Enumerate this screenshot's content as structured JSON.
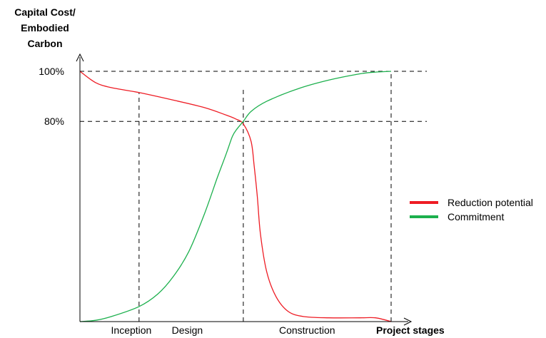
{
  "chart_data": {
    "type": "line",
    "ylabel_lines": [
      "Capital Cost/",
      "Embodied",
      "Carbon"
    ],
    "xlabel": "Project stages",
    "y_ticks": [
      "100%",
      "80%"
    ],
    "y_tick_values": [
      100,
      80
    ],
    "ylim": [
      0,
      100
    ],
    "xlim": [
      0,
      100
    ],
    "stages": [
      "Inception",
      "Design",
      "Construction"
    ],
    "stage_centers": [
      16.5,
      34.5,
      73
    ],
    "stage_boundaries": [
      19,
      52.5,
      100
    ],
    "legend_placement": "right",
    "series": [
      {
        "name": "Reduction potential",
        "color": "#ee1c24",
        "x": [
          0,
          5,
          10,
          19,
          30,
          40,
          47,
          50,
          52.5,
          55,
          56,
          57,
          58,
          60,
          63,
          67,
          72,
          80,
          90,
          95,
          100
        ],
        "y": [
          100,
          95.5,
          93.5,
          91.5,
          88.5,
          85.5,
          82.5,
          81,
          79,
          72,
          62,
          50,
          35,
          20,
          10,
          4,
          2,
          1.5,
          1.5,
          1.5,
          0
        ]
      },
      {
        "name": "Commitment",
        "color": "#1cb04d",
        "x": [
          0,
          5,
          10,
          19,
          25,
          30,
          35,
          40,
          44,
          47,
          49,
          50.5,
          52.5,
          55,
          60,
          70,
          80,
          90,
          95,
          100
        ],
        "y": [
          0,
          0.5,
          2,
          6,
          11,
          18,
          28,
          43,
          57,
          67,
          74,
          77,
          80,
          84,
          88,
          93,
          96.5,
          99,
          99.7,
          100
        ]
      }
    ]
  }
}
